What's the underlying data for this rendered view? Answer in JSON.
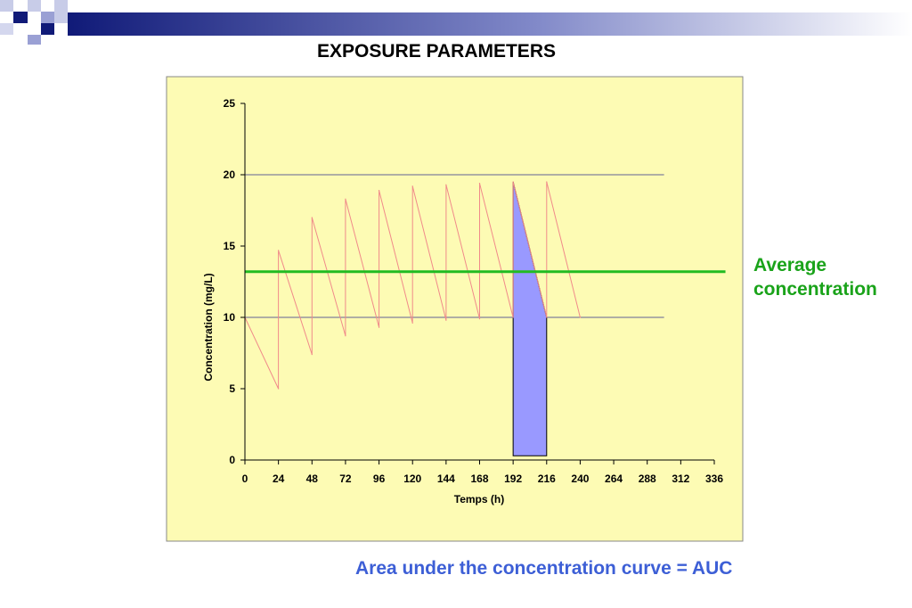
{
  "slide": {
    "title": "EXPOSURE PARAMETERS",
    "average_label_line1": "Average",
    "average_label_line2": "concentration",
    "auc_caption": "Area under the concentration curve = AUC",
    "colors": {
      "banner_dark": "#101a78",
      "plot_background": "#fdfbb4",
      "curve": "#f08a8a",
      "average_line": "#22bb22",
      "auc_fill": "#9999ff",
      "gridline": "#2d2d8a",
      "average_text": "#1aa31a",
      "caption_text": "#3d5fd6"
    }
  },
  "chart_data": {
    "type": "line",
    "xlabel": "Temps (h)",
    "ylabel": "Concentration (mg/L)",
    "xlim": [
      0,
      336
    ],
    "ylim": [
      0,
      25
    ],
    "x_ticks": [
      0,
      24,
      48,
      72,
      96,
      120,
      144,
      168,
      192,
      216,
      240,
      264,
      288,
      312,
      336
    ],
    "y_ticks": [
      0,
      5,
      10,
      15,
      20,
      25
    ],
    "gridlines_y": [
      10,
      20
    ],
    "series": [
      {
        "points": [
          [
            0,
            10
          ],
          [
            24,
            5
          ],
          [
            24,
            14.7
          ],
          [
            48,
            7.4
          ],
          [
            48,
            17
          ],
          [
            72,
            8.7
          ],
          [
            72,
            18.3
          ],
          [
            96,
            9.3
          ],
          [
            96,
            18.9
          ],
          [
            120,
            9.6
          ],
          [
            120,
            19.2
          ],
          [
            144,
            9.8
          ],
          [
            144,
            19.3
          ],
          [
            168,
            9.9
          ],
          [
            168,
            19.4
          ],
          [
            192,
            10
          ],
          [
            192,
            19.5
          ],
          [
            216,
            10
          ],
          [
            216,
            19.5
          ],
          [
            240,
            10
          ]
        ]
      }
    ],
    "average_concentration": 13.2,
    "average_line_xlim": [
      0,
      344
    ],
    "auc_interval": [
      192,
      216
    ],
    "auc_top": [
      [
        192,
        19.5
      ],
      [
        216,
        10
      ]
    ],
    "auc_base": 0.3
  }
}
